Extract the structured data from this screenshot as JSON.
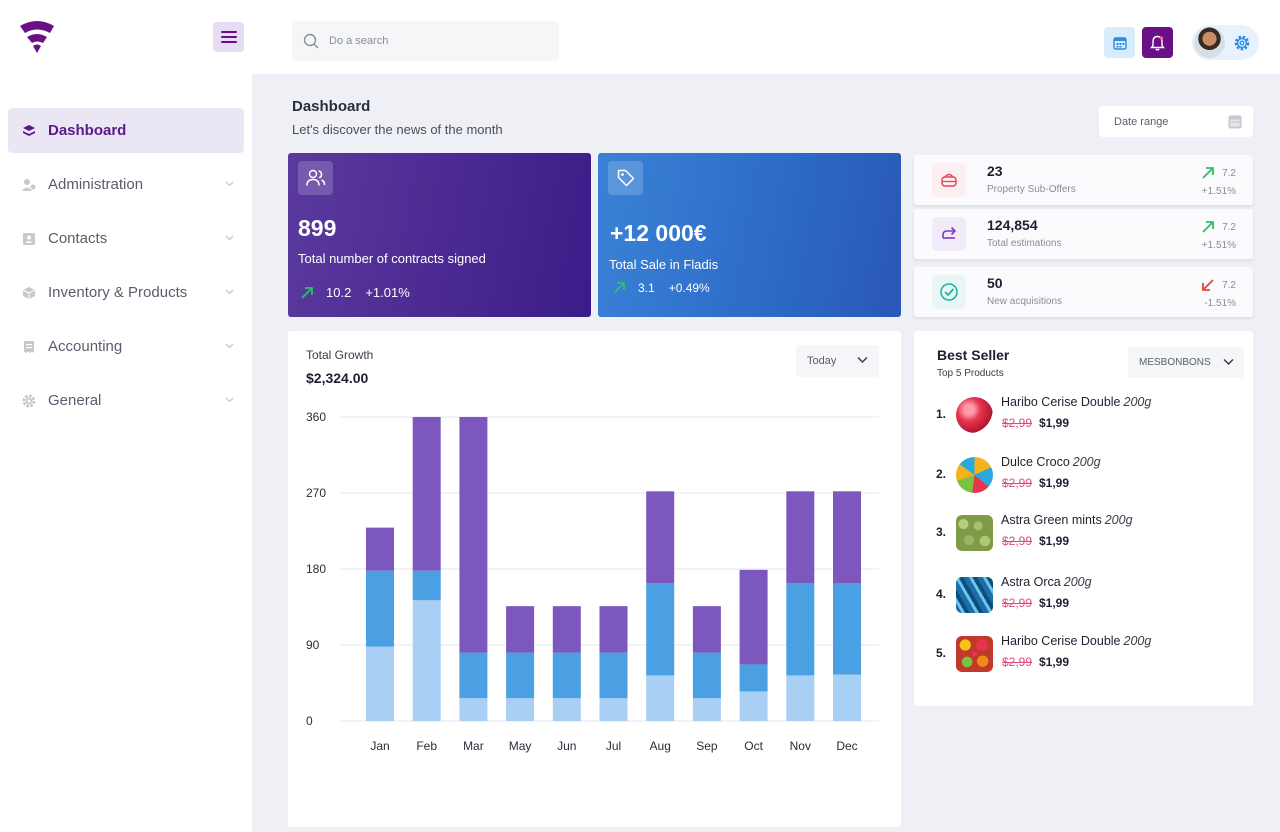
{
  "sidebar": {
    "items": [
      {
        "label": "Dashboard",
        "icon": "layers-icon"
      },
      {
        "label": "Administration",
        "icon": "users-cog-icon"
      },
      {
        "label": "Contacts",
        "icon": "address-book-icon"
      },
      {
        "label": "Inventory & Products",
        "icon": "box-icon"
      },
      {
        "label": "Accounting",
        "icon": "receipt-icon"
      },
      {
        "label": "General",
        "icon": "gear-icon"
      }
    ]
  },
  "topbar": {
    "search_placeholder": "Do a search"
  },
  "header": {
    "title": "Dashboard",
    "subtitle": "Let's discover the news of the month",
    "date_range": "Date range"
  },
  "kpis": [
    {
      "value": "899",
      "label": "Total number of contracts signed",
      "num": "10.2",
      "pct": "+1.01%"
    },
    {
      "value": "+12 000€",
      "label": "Total Sale in Fladis",
      "num": "3.1",
      "pct": "+0.49%"
    }
  ],
  "stats": [
    {
      "value": "23",
      "label": "Property Sub-Offers",
      "num": "7.2",
      "pct": "+1.51%",
      "trend": "up"
    },
    {
      "value": "124,854",
      "label": "Total estimations",
      "num": "7.2",
      "pct": "+1.51%",
      "trend": "up"
    },
    {
      "value": "50",
      "label": "New acquisitions",
      "num": "7.2",
      "pct": "-1.51%",
      "trend": "down"
    }
  ],
  "growth": {
    "title": "Total Growth",
    "value": "$2,324.00",
    "period": "Today"
  },
  "chart_data": {
    "type": "bar",
    "stacked": true,
    "categories": [
      "Jan",
      "Feb",
      "Mar",
      "May",
      "Jun",
      "Jul",
      "Aug",
      "Sep",
      "Oct",
      "Nov",
      "Dec"
    ],
    "yticks": [
      0,
      90,
      180,
      270,
      360
    ],
    "ylim": [
      0,
      360
    ],
    "grid": true,
    "series": [
      {
        "values": [
          88,
          143,
          27,
          27,
          27,
          27,
          54,
          27,
          35,
          54,
          55
        ],
        "color": "#a9cff5"
      },
      {
        "values": [
          90,
          35,
          54,
          54,
          54,
          54,
          109,
          54,
          32,
          109,
          108
        ],
        "color": "#4aa0e2"
      },
      {
        "values": [
          51,
          182,
          279,
          55,
          55,
          55,
          109,
          55,
          112,
          109,
          109
        ],
        "color": "#7c57bd"
      }
    ]
  },
  "best_seller": {
    "title": "Best Seller",
    "subtitle": "Top 5 Products",
    "filter": "MESBONBONS",
    "items": [
      {
        "rank": "1.",
        "name": "Haribo Cerise Double",
        "weight": "200g",
        "old_price": "$2,99",
        "price": "$1,99"
      },
      {
        "rank": "2.",
        "name": "Dulce Croco",
        "weight": "200g",
        "old_price": "$2,99",
        "price": "$1,99"
      },
      {
        "rank": "3.",
        "name": "Astra Green mints",
        "weight": "200g",
        "old_price": "$2,99",
        "price": "$1,99"
      },
      {
        "rank": "4.",
        "name": "Astra Orca",
        "weight": "200g",
        "old_price": "$2,99",
        "price": "$1,99"
      },
      {
        "rank": "5.",
        "name": "Haribo Cerise Double",
        "weight": "200g",
        "old_price": "$2,99",
        "price": "$1,99"
      }
    ]
  },
  "colors": {
    "brand": "#6b0f86",
    "up": "#2fbf6a",
    "down": "#e8433c"
  }
}
